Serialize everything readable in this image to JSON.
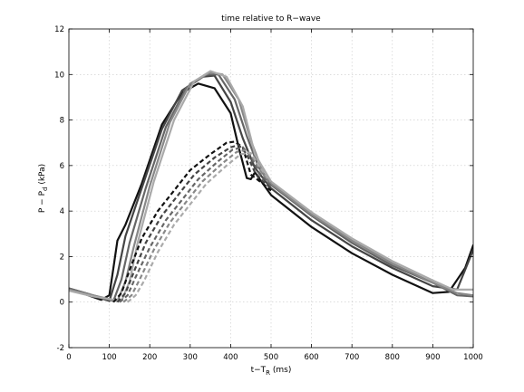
{
  "chart_data": {
    "type": "line",
    "title": "time relative to R−wave",
    "xlabel": {
      "main": "t−T",
      "sub": "R",
      "suffix": " (ms)"
    },
    "ylabel": {
      "main": "P − P",
      "sub": "d",
      "suffix": " (kPa)"
    },
    "xlim": [
      0,
      1000
    ],
    "ylim": [
      -2,
      12
    ],
    "xticks": [
      0,
      100,
      200,
      300,
      400,
      500,
      600,
      700,
      800,
      900,
      1000
    ],
    "yticks": [
      -2,
      0,
      2,
      4,
      6,
      8,
      10,
      12
    ],
    "grid": true,
    "series": [
      {
        "style": "solid",
        "color": "#111111",
        "points": [
          [
            0,
            0.55
          ],
          [
            40,
            0.35
          ],
          [
            80,
            0.1
          ],
          [
            100,
            0.3
          ],
          [
            110,
            1.5
          ],
          [
            120,
            2.7
          ],
          [
            140,
            3.4
          ],
          [
            180,
            5.2
          ],
          [
            230,
            7.8
          ],
          [
            280,
            9.2
          ],
          [
            320,
            9.6
          ],
          [
            360,
            9.4
          ],
          [
            400,
            8.3
          ],
          [
            420,
            6.8
          ],
          [
            440,
            5.45
          ],
          [
            450,
            5.4
          ],
          [
            460,
            5.7
          ],
          [
            500,
            4.7
          ],
          [
            600,
            3.3
          ],
          [
            700,
            2.15
          ],
          [
            800,
            1.2
          ],
          [
            900,
            0.4
          ],
          [
            940,
            0.45
          ],
          [
            980,
            1.5
          ],
          [
            1000,
            2.5
          ]
        ]
      },
      {
        "style": "solid",
        "color": "#444444",
        "points": [
          [
            0,
            0.6
          ],
          [
            50,
            0.35
          ],
          [
            100,
            0.05
          ],
          [
            120,
            1.2
          ],
          [
            140,
            2.9
          ],
          [
            180,
            5.0
          ],
          [
            230,
            7.6
          ],
          [
            280,
            9.3
          ],
          [
            330,
            9.9
          ],
          [
            360,
            9.95
          ],
          [
            400,
            8.8
          ],
          [
            430,
            7.2
          ],
          [
            460,
            5.9
          ],
          [
            500,
            5.0
          ],
          [
            600,
            3.6
          ],
          [
            700,
            2.45
          ],
          [
            800,
            1.5
          ],
          [
            900,
            0.7
          ],
          [
            960,
            0.55
          ],
          [
            1000,
            2.3
          ]
        ]
      },
      {
        "style": "solid",
        "color": "#666666",
        "points": [
          [
            0,
            0.6
          ],
          [
            50,
            0.35
          ],
          [
            110,
            0.05
          ],
          [
            130,
            1.0
          ],
          [
            150,
            2.6
          ],
          [
            190,
            5.0
          ],
          [
            240,
            7.7
          ],
          [
            290,
            9.4
          ],
          [
            340,
            10.0
          ],
          [
            370,
            10.0
          ],
          [
            410,
            8.9
          ],
          [
            440,
            7.3
          ],
          [
            470,
            5.9
          ],
          [
            500,
            5.15
          ],
          [
            600,
            3.8
          ],
          [
            700,
            2.6
          ],
          [
            800,
            1.6
          ],
          [
            900,
            0.85
          ],
          [
            960,
            0.3
          ],
          [
            1000,
            0.25
          ]
        ]
      },
      {
        "style": "solid",
        "color": "#888888",
        "points": [
          [
            0,
            0.55
          ],
          [
            60,
            0.3
          ],
          [
            120,
            0.05
          ],
          [
            140,
            0.9
          ],
          [
            160,
            2.4
          ],
          [
            200,
            5.1
          ],
          [
            250,
            7.9
          ],
          [
            300,
            9.6
          ],
          [
            350,
            10.1
          ],
          [
            380,
            10.0
          ],
          [
            420,
            8.9
          ],
          [
            450,
            7.1
          ],
          [
            480,
            5.7
          ],
          [
            500,
            5.2
          ],
          [
            600,
            3.85
          ],
          [
            700,
            2.7
          ],
          [
            800,
            1.7
          ],
          [
            900,
            0.85
          ],
          [
            960,
            0.4
          ],
          [
            1000,
            0.3
          ]
        ]
      },
      {
        "style": "solid",
        "color": "#aaaaaa",
        "points": [
          [
            0,
            0.5
          ],
          [
            60,
            0.25
          ],
          [
            130,
            0.05
          ],
          [
            150,
            0.9
          ],
          [
            170,
            2.6
          ],
          [
            210,
            5.3
          ],
          [
            260,
            8.0
          ],
          [
            310,
            9.7
          ],
          [
            350,
            10.15
          ],
          [
            390,
            9.9
          ],
          [
            430,
            8.6
          ],
          [
            460,
            6.5
          ],
          [
            480,
            5.9
          ],
          [
            500,
            5.3
          ],
          [
            600,
            3.95
          ],
          [
            700,
            2.8
          ],
          [
            800,
            1.8
          ],
          [
            900,
            0.95
          ],
          [
            950,
            0.55
          ],
          [
            1000,
            0.55
          ]
        ]
      },
      {
        "style": "dashed",
        "color": "#111111",
        "points": [
          [
            110,
            0.0
          ],
          [
            130,
            0.4
          ],
          [
            150,
            1.4
          ],
          [
            180,
            2.8
          ],
          [
            220,
            4.0
          ],
          [
            260,
            4.9
          ],
          [
            300,
            5.8
          ],
          [
            350,
            6.5
          ],
          [
            390,
            7.0
          ],
          [
            410,
            7.05
          ],
          [
            430,
            6.8
          ],
          [
            450,
            5.6
          ],
          [
            480,
            5.2
          ],
          [
            500,
            4.9
          ]
        ]
      },
      {
        "style": "dashed",
        "color": "#444444",
        "points": [
          [
            120,
            0.0
          ],
          [
            140,
            0.4
          ],
          [
            160,
            1.3
          ],
          [
            190,
            2.6
          ],
          [
            230,
            3.8
          ],
          [
            270,
            4.7
          ],
          [
            310,
            5.6
          ],
          [
            360,
            6.35
          ],
          [
            400,
            6.8
          ],
          [
            420,
            6.9
          ],
          [
            440,
            6.5
          ],
          [
            460,
            5.7
          ],
          [
            480,
            5.3
          ],
          [
            500,
            5.0
          ]
        ]
      },
      {
        "style": "dashed",
        "color": "#666666",
        "points": [
          [
            125,
            0.0
          ],
          [
            145,
            0.3
          ],
          [
            165,
            1.1
          ],
          [
            200,
            2.4
          ],
          [
            240,
            3.6
          ],
          [
            280,
            4.5
          ],
          [
            320,
            5.4
          ],
          [
            370,
            6.2
          ],
          [
            405,
            6.7
          ],
          [
            430,
            6.8
          ],
          [
            450,
            6.4
          ],
          [
            470,
            5.7
          ],
          [
            490,
            5.3
          ],
          [
            500,
            5.1
          ]
        ]
      },
      {
        "style": "dashed",
        "color": "#888888",
        "points": [
          [
            135,
            0.0
          ],
          [
            155,
            0.3
          ],
          [
            175,
            1.0
          ],
          [
            210,
            2.3
          ],
          [
            250,
            3.5
          ],
          [
            290,
            4.4
          ],
          [
            330,
            5.3
          ],
          [
            380,
            6.1
          ],
          [
            415,
            6.6
          ],
          [
            440,
            6.7
          ],
          [
            460,
            6.2
          ],
          [
            480,
            5.6
          ],
          [
            500,
            5.25
          ]
        ]
      },
      {
        "style": "dashed",
        "color": "#aaaaaa",
        "points": [
          [
            145,
            0.0
          ],
          [
            165,
            0.3
          ],
          [
            185,
            0.9
          ],
          [
            220,
            2.2
          ],
          [
            260,
            3.4
          ],
          [
            300,
            4.3
          ],
          [
            340,
            5.2
          ],
          [
            390,
            6.0
          ],
          [
            425,
            6.5
          ],
          [
            450,
            6.55
          ],
          [
            470,
            6.0
          ],
          [
            490,
            5.5
          ],
          [
            500,
            5.3
          ]
        ]
      }
    ]
  }
}
